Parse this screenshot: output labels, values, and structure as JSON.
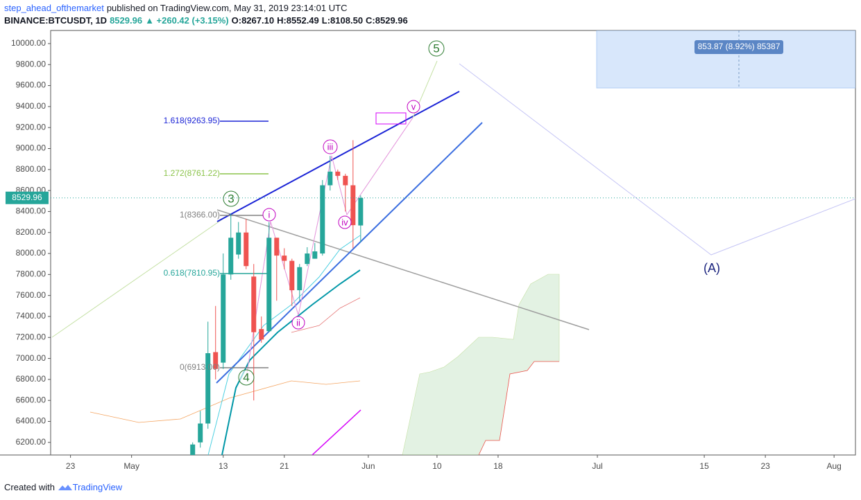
{
  "chart_data": {
    "type": "candlestick",
    "author": "step_ahead_ofthemarket",
    "published": "published on TradingView.com, May 31, 2019 23:14:01 UTC",
    "symbol": "BINANCE:BTCUSDT, 1D",
    "last": "8529.96",
    "change": "▲ +260.42 (+3.15%)",
    "ohlc_text": [
      "O:8267.10",
      "H:8552.49",
      "L:8108.50",
      "C:8529.96"
    ],
    "x": [
      -4,
      -3,
      -2,
      -1,
      0,
      1,
      2,
      3,
      4,
      5,
      6,
      7,
      8,
      9,
      10,
      11,
      12,
      13,
      14,
      15,
      16,
      17,
      18
    ],
    "open": [
      6050,
      6200,
      6380,
      7060,
      6960,
      7800,
      7990,
      8200,
      7780,
      7280,
      7260,
      8150,
      7980,
      7930,
      7650,
      7900,
      7950,
      8000,
      8650,
      8780,
      8740,
      8650,
      8267.1
    ],
    "high": [
      6200,
      6500,
      7350,
      7500,
      8000,
      8380,
      8300,
      8330,
      7900,
      7400,
      8300,
      8150,
      8050,
      7950,
      7900,
      8060,
      8100,
      8700,
      8930,
      8800,
      8760,
      9080,
      8552.49
    ],
    "low": [
      6050,
      6150,
      6330,
      6800,
      6900,
      7750,
      7950,
      7850,
      6600,
      7150,
      7250,
      7550,
      7850,
      7500,
      7550,
      7880,
      7950,
      7980,
      8600,
      8700,
      8400,
      8050,
      8108.5
    ],
    "close": [
      6180,
      6380,
      7050,
      6900,
      7800,
      8150,
      8200,
      7880,
      7250,
      7180,
      8150,
      7980,
      7930,
      7650,
      7870,
      8000,
      8020,
      8650,
      8780,
      8740,
      8650,
      8270,
      8529.96
    ],
    "up_color": "#26a69a",
    "down_color": "#ef5350",
    "last_price": 8529.96,
    "xlim": [
      -22.6,
      82.8
    ],
    "xticks": [
      {
        "value": -20,
        "label": "23"
      },
      {
        "value": -12,
        "label": "May"
      },
      {
        "value": 0,
        "label": "13"
      },
      {
        "value": 8,
        "label": "21"
      },
      {
        "value": 19,
        "label": "Jun"
      },
      {
        "value": 28,
        "label": "10"
      },
      {
        "value": 36,
        "label": "18"
      },
      {
        "value": 49,
        "label": "Jul"
      },
      {
        "value": 63,
        "label": "15"
      },
      {
        "value": 71,
        "label": "23"
      },
      {
        "value": 80,
        "label": "Aug"
      }
    ],
    "ylim": [
      6080,
      10125
    ],
    "yticks": [
      {
        "value": 6200,
        "label": "6200.00"
      },
      {
        "value": 6400,
        "label": "6400.00"
      },
      {
        "value": 6600,
        "label": "6600.00"
      },
      {
        "value": 6800,
        "label": "6800.00"
      },
      {
        "value": 7000,
        "label": "7000.00"
      },
      {
        "value": 7200,
        "label": "7200.00"
      },
      {
        "value": 7400,
        "label": "7400.00"
      },
      {
        "value": 7600,
        "label": "7600.00"
      },
      {
        "value": 7800,
        "label": "7800.00"
      },
      {
        "value": 8000,
        "label": "8000.00"
      },
      {
        "value": 8200,
        "label": "8200.00"
      },
      {
        "value": 8400,
        "label": "8400.00"
      },
      {
        "value": 8600,
        "label": "8600.00"
      },
      {
        "value": 8800,
        "label": "8800.00"
      },
      {
        "value": 9000,
        "label": "9000.00"
      },
      {
        "value": 9200,
        "label": "9200.00"
      },
      {
        "value": 9400,
        "label": "9400.00"
      },
      {
        "value": 9600,
        "label": "9600.00"
      },
      {
        "value": 9800,
        "label": "9800.00"
      },
      {
        "value": 10000,
        "label": "10000.00"
      }
    ],
    "annotations": [
      "1.618(9263.95)",
      "1.272(8761.22)",
      "1(8366.00)",
      "0.618(7810.95)",
      "0(6913.00)",
      "5",
      "3",
      "4",
      "i",
      "ii",
      "iii",
      "iv",
      "v",
      "(A)",
      "853.87 (8.92%) 85387"
    ],
    "footer": [
      "Created with",
      "TradingView"
    ]
  }
}
